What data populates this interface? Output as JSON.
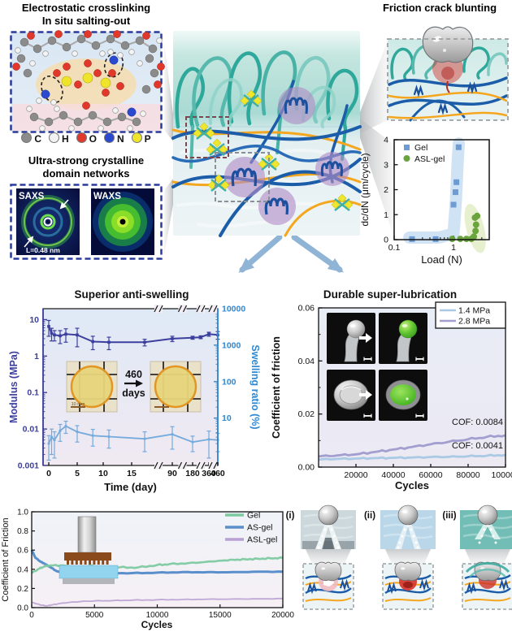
{
  "panels": {
    "electrostatic": {
      "title_line1": "Electrostatic crosslinking",
      "title_line2": "In situ salting-out",
      "atom_legend": [
        {
          "symbol": "C",
          "color": "#8b8b8b"
        },
        {
          "symbol": "H",
          "color": "#f2f2f2"
        },
        {
          "symbol": "O",
          "color": "#e0392c"
        },
        {
          "symbol": "N",
          "color": "#2b49cf"
        },
        {
          "symbol": "P",
          "color": "#efe42c"
        }
      ]
    },
    "crystalline": {
      "title_line1": "Ultra-strong crystalline",
      "title_line2": "domain networks",
      "saxs_label": "SAXS",
      "waxs_label": "WAXS",
      "saxs_annotation": "L=0.48 nm"
    },
    "friction_blunting": {
      "title": "Friction crack blunting"
    },
    "mechanism_labels": [
      "(i)",
      "(ii)",
      "(iii)"
    ]
  },
  "chart_data": [
    {
      "id": "crack_growth",
      "type": "scatter",
      "xlabel": "Load (N)",
      "ylabel": "dc/dN (μm/cycle)",
      "xscale": "log",
      "xlim": [
        0.1,
        4
      ],
      "ylim": [
        0,
        4
      ],
      "yticks": [
        0,
        1,
        2,
        3,
        4
      ],
      "xtick_labels": [
        "0.1",
        "1"
      ],
      "legend_position": "top-left",
      "series": [
        {
          "name": "Gel",
          "marker": "square",
          "color": "#6d9bd3",
          "points": [
            [
              0.2,
              0.02
            ],
            [
              0.5,
              0.02
            ],
            [
              1.0,
              1.4
            ],
            [
              1.08,
              1.9
            ],
            [
              1.12,
              2.3
            ],
            [
              1.22,
              3.7
            ]
          ]
        },
        {
          "name": "ASL-gel",
          "marker": "circle",
          "color": "#6aa43c",
          "points": [
            [
              0.95,
              0.03
            ],
            [
              1.3,
              0.03
            ],
            [
              1.65,
              0.03
            ],
            [
              2.0,
              0.03
            ],
            [
              2.2,
              0.12
            ],
            [
              2.35,
              0.35
            ],
            [
              2.4,
              0.6
            ],
            [
              2.3,
              0.88
            ],
            [
              2.5,
              0.95
            ]
          ]
        }
      ]
    },
    {
      "id": "anti_swelling",
      "type": "line",
      "title": "Superior anti-swelling",
      "xlabel": "Time (day)",
      "ylabel_left": "Modulus (MPa)",
      "ylabel_right": "Swelling ratio (%)",
      "yscale": "log",
      "axis_break": true,
      "ytick_labels_left": [
        "10",
        "1",
        "0.1",
        "0.01",
        "0.001"
      ],
      "ytick_labels_right": [
        "10000",
        "1000",
        "100",
        "10"
      ],
      "xtick_days": [
        0,
        5,
        10,
        15,
        90,
        180,
        360,
        460
      ],
      "xtick_labels": [
        "0",
        "5",
        "10",
        "15",
        "90",
        "180",
        "360",
        "460"
      ],
      "series": [
        {
          "name": "Modulus",
          "axis": "left",
          "color": "#3c3f9e",
          "points": [
            [
              0,
              6.5,
              3.0
            ],
            [
              0.5,
              4.2,
              1.6
            ],
            [
              1,
              3.8,
              1.2
            ],
            [
              2,
              3.6,
              1.4
            ],
            [
              3,
              4.0,
              1.6
            ],
            [
              5,
              3.8,
              2.0
            ],
            [
              8,
              2.5,
              1.0
            ],
            [
              11,
              2.4,
              0.9
            ],
            [
              20,
              2.4,
              0.5
            ],
            [
              90,
              3.0,
              0.5
            ],
            [
              180,
              3.2,
              0.3
            ],
            [
              270,
              3.3,
              0.3
            ],
            [
              360,
              4.0,
              0.5
            ],
            [
              460,
              3.8,
              0.9
            ]
          ]
        },
        {
          "name": "Swelling ratio",
          "axis": "right",
          "color": "#74aadc",
          "points": [
            [
              0,
              2.0,
              1.3
            ],
            [
              0.5,
              3.0,
              2.0
            ],
            [
              1,
              2.5,
              1.7
            ],
            [
              2,
              4.5,
              2.2
            ],
            [
              3,
              6.0,
              2.2
            ],
            [
              5,
              4.2,
              2.0
            ],
            [
              8,
              3.3,
              1.6
            ],
            [
              11,
              3.1,
              1.6
            ],
            [
              20,
              2.7,
              1.5
            ],
            [
              90,
              3.6,
              2.2
            ],
            [
              180,
              2.2,
              1.0
            ],
            [
              360,
              2.6,
              1.8
            ],
            [
              460,
              2.5,
              1.3
            ]
          ]
        }
      ],
      "inset": {
        "duration_value": "460",
        "duration_unit": "days",
        "scalebar_label": "10 mm"
      }
    },
    {
      "id": "lubrication",
      "type": "line",
      "title": "Durable super-lubrication",
      "xlabel": "Cycles",
      "ylabel": "Coefficient of friction",
      "ylim": [
        0,
        0.06
      ],
      "xlim": [
        0,
        100000
      ],
      "ytick_labels": [
        "0.00",
        "0.02",
        "0.04",
        "0.06"
      ],
      "xtick_values": [
        20000,
        40000,
        60000,
        80000,
        100000
      ],
      "xtick_labels": [
        "20000",
        "40000",
        "60000",
        "80000",
        "100000"
      ],
      "annotations": [
        {
          "text": "COF: 0.0084"
        },
        {
          "text": "COF: 0.0041"
        }
      ],
      "series": [
        {
          "name": "1.4 MPa",
          "color": "#a9c9e4",
          "points": [
            [
              0,
              0.0028
            ],
            [
              10000,
              0.0031
            ],
            [
              20000,
              0.0032
            ],
            [
              30000,
              0.0034
            ],
            [
              40000,
              0.0035
            ],
            [
              50000,
              0.0036
            ],
            [
              60000,
              0.0038
            ],
            [
              70000,
              0.0039
            ],
            [
              80000,
              0.0041
            ],
            [
              90000,
              0.0043
            ],
            [
              100000,
              0.0046
            ]
          ]
        },
        {
          "name": "2.8 MPa",
          "color": "#a39ed0",
          "points": [
            [
              0,
              0.004
            ],
            [
              10000,
              0.0044
            ],
            [
              20000,
              0.0048
            ],
            [
              30000,
              0.0057
            ],
            [
              40000,
              0.0066
            ],
            [
              50000,
              0.0076
            ],
            [
              60000,
              0.0086
            ],
            [
              70000,
              0.0096
            ],
            [
              80000,
              0.0105
            ],
            [
              90000,
              0.0114
            ],
            [
              100000,
              0.012
            ]
          ]
        }
      ]
    },
    {
      "id": "friction_cycles",
      "type": "line",
      "xlabel": "Cycles",
      "ylabel": "Coefficient of Friction",
      "ylim": [
        0,
        1.0
      ],
      "xlim": [
        0,
        20000
      ],
      "ytick_labels": [
        "0.0",
        "0.2",
        "0.4",
        "0.6",
        "0.8",
        "1.0"
      ],
      "xtick_values": [
        0,
        5000,
        10000,
        15000,
        20000
      ],
      "xtick_labels": [
        "0",
        "5000",
        "10000",
        "15000",
        "20000"
      ],
      "series": [
        {
          "name": "Gel",
          "color": "#7cc9a0",
          "points": [
            [
              0,
              0.36
            ],
            [
              500,
              0.4
            ],
            [
              1000,
              0.43
            ],
            [
              1500,
              0.44
            ],
            [
              2500,
              0.44
            ],
            [
              3500,
              0.42
            ],
            [
              4200,
              0.4
            ],
            [
              4600,
              0.44
            ],
            [
              5500,
              0.42
            ],
            [
              7000,
              0.42
            ],
            [
              8500,
              0.42
            ],
            [
              10000,
              0.445
            ],
            [
              11000,
              0.455
            ],
            [
              12500,
              0.465
            ],
            [
              14000,
              0.48
            ],
            [
              15000,
              0.49
            ],
            [
              16000,
              0.5
            ],
            [
              17000,
              0.505
            ],
            [
              18000,
              0.51
            ],
            [
              19000,
              0.515
            ],
            [
              20000,
              0.52
            ]
          ]
        },
        {
          "name": "AS-gel",
          "color": "#5a8fcb",
          "points": [
            [
              0,
              0.6
            ],
            [
              300,
              0.52
            ],
            [
              700,
              0.48
            ],
            [
              1000,
              0.46
            ],
            [
              1500,
              0.42
            ],
            [
              2000,
              0.38
            ],
            [
              2500,
              0.36
            ],
            [
              3200,
              0.355
            ],
            [
              4500,
              0.355
            ],
            [
              6000,
              0.36
            ],
            [
              8000,
              0.36
            ],
            [
              10000,
              0.365
            ],
            [
              12000,
              0.37
            ],
            [
              14000,
              0.37
            ],
            [
              16000,
              0.37
            ],
            [
              18000,
              0.375
            ],
            [
              20000,
              0.375
            ]
          ]
        },
        {
          "name": "ASL-gel",
          "color": "#b9a0d3",
          "points": [
            [
              0,
              0.055
            ],
            [
              400,
              0.04
            ],
            [
              800,
              0.025
            ],
            [
              1200,
              0.018
            ],
            [
              1600,
              0.028
            ],
            [
              2200,
              0.042
            ],
            [
              3000,
              0.055
            ],
            [
              4000,
              0.065
            ],
            [
              5000,
              0.07
            ],
            [
              6500,
              0.074
            ],
            [
              8000,
              0.078
            ],
            [
              10000,
              0.082
            ],
            [
              12000,
              0.085
            ],
            [
              14000,
              0.088
            ],
            [
              16000,
              0.09
            ],
            [
              18000,
              0.092
            ],
            [
              20000,
              0.095
            ]
          ]
        }
      ]
    }
  ]
}
